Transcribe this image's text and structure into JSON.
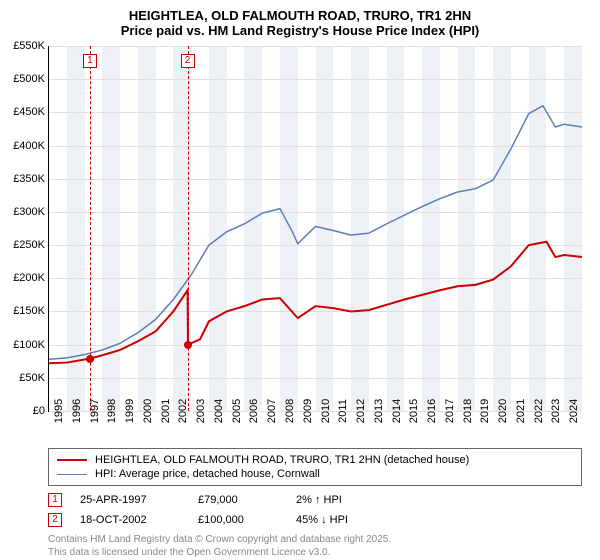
{
  "title": {
    "line1": "HEIGHTLEA, OLD FALMOUTH ROAD, TRURO, TR1 2HN",
    "line2": "Price paid vs. HM Land Registry's House Price Index (HPI)"
  },
  "chart": {
    "type": "line",
    "x_years": [
      1995,
      1996,
      1997,
      1998,
      1999,
      2000,
      2001,
      2002,
      2003,
      2004,
      2005,
      2006,
      2007,
      2008,
      2009,
      2010,
      2011,
      2012,
      2013,
      2014,
      2015,
      2016,
      2017,
      2018,
      2019,
      2020,
      2021,
      2022,
      2023,
      2024
    ],
    "xlim": [
      1995,
      2025
    ],
    "ylim": [
      0,
      550000
    ],
    "ytick_step": 50000,
    "ytick_labels": [
      "£0",
      "£50K",
      "£100K",
      "£150K",
      "£200K",
      "£250K",
      "£300K",
      "£350K",
      "£400K",
      "£450K",
      "£500K",
      "£550K"
    ],
    "band_color": "#eef2f7",
    "grid_color": "#e0e0e0",
    "background_color": "#ffffff",
    "title_fontsize": 13,
    "label_fontsize": 11,
    "series": [
      {
        "name": "price_paid",
        "label": "HEIGHTLEA, OLD FALMOUTH ROAD, TRURO, TR1 2HN (detached house)",
        "color": "#cc0000",
        "line_width": 2,
        "points": [
          [
            1995.0,
            72000
          ],
          [
            1996.0,
            73000
          ],
          [
            1997.3,
            79000
          ],
          [
            1998.0,
            84000
          ],
          [
            1999.0,
            92000
          ],
          [
            2000.0,
            105000
          ],
          [
            2001.0,
            120000
          ],
          [
            2002.0,
            150000
          ],
          [
            2002.8,
            182000
          ],
          [
            2002.82,
            100000
          ],
          [
            2003.5,
            108000
          ],
          [
            2004.0,
            135000
          ],
          [
            2005.0,
            150000
          ],
          [
            2006.0,
            158000
          ],
          [
            2007.0,
            168000
          ],
          [
            2008.0,
            170000
          ],
          [
            2008.5,
            155000
          ],
          [
            2009.0,
            140000
          ],
          [
            2010.0,
            158000
          ],
          [
            2011.0,
            155000
          ],
          [
            2012.0,
            150000
          ],
          [
            2013.0,
            152000
          ],
          [
            2014.0,
            160000
          ],
          [
            2015.0,
            168000
          ],
          [
            2016.0,
            175000
          ],
          [
            2017.0,
            182000
          ],
          [
            2018.0,
            188000
          ],
          [
            2019.0,
            190000
          ],
          [
            2020.0,
            198000
          ],
          [
            2021.0,
            218000
          ],
          [
            2022.0,
            250000
          ],
          [
            2023.0,
            255000
          ],
          [
            2023.5,
            232000
          ],
          [
            2024.0,
            235000
          ],
          [
            2025.0,
            232000
          ]
        ]
      },
      {
        "name": "hpi",
        "label": "HPI: Average price, detached house, Cornwall",
        "color": "#5b7fb5",
        "line_width": 1.5,
        "points": [
          [
            1995.0,
            78000
          ],
          [
            1996.0,
            80000
          ],
          [
            1997.0,
            85000
          ],
          [
            1998.0,
            92000
          ],
          [
            1999.0,
            102000
          ],
          [
            2000.0,
            118000
          ],
          [
            2001.0,
            138000
          ],
          [
            2002.0,
            168000
          ],
          [
            2003.0,
            205000
          ],
          [
            2004.0,
            250000
          ],
          [
            2005.0,
            270000
          ],
          [
            2006.0,
            282000
          ],
          [
            2007.0,
            298000
          ],
          [
            2008.0,
            305000
          ],
          [
            2008.7,
            270000
          ],
          [
            2009.0,
            252000
          ],
          [
            2010.0,
            278000
          ],
          [
            2011.0,
            272000
          ],
          [
            2012.0,
            265000
          ],
          [
            2013.0,
            268000
          ],
          [
            2014.0,
            282000
          ],
          [
            2015.0,
            295000
          ],
          [
            2016.0,
            308000
          ],
          [
            2017.0,
            320000
          ],
          [
            2018.0,
            330000
          ],
          [
            2019.0,
            335000
          ],
          [
            2020.0,
            348000
          ],
          [
            2021.0,
            395000
          ],
          [
            2022.0,
            448000
          ],
          [
            2022.8,
            460000
          ],
          [
            2023.5,
            428000
          ],
          [
            2024.0,
            432000
          ],
          [
            2025.0,
            428000
          ]
        ]
      }
    ],
    "markers": [
      {
        "num": "1",
        "x": 1997.3,
        "y": 79000
      },
      {
        "num": "2",
        "x": 2002.8,
        "y": 100000
      }
    ]
  },
  "legend": {
    "rows": [
      {
        "color": "#cc0000",
        "width": 2,
        "label": "HEIGHTLEA, OLD FALMOUTH ROAD, TRURO, TR1 2HN (detached house)"
      },
      {
        "color": "#5b7fb5",
        "width": 1.5,
        "label": "HPI: Average price, detached house, Cornwall"
      }
    ]
  },
  "events": [
    {
      "num": "1",
      "date": "25-APR-1997",
      "price": "£79,000",
      "pct": "2%",
      "arrow": "↑",
      "suffix": "HPI"
    },
    {
      "num": "2",
      "date": "18-OCT-2002",
      "price": "£100,000",
      "pct": "45%",
      "arrow": "↓",
      "suffix": "HPI"
    }
  ],
  "attribution": {
    "line1": "Contains HM Land Registry data © Crown copyright and database right 2025.",
    "line2": "This data is licensed under the Open Government Licence v3.0."
  }
}
